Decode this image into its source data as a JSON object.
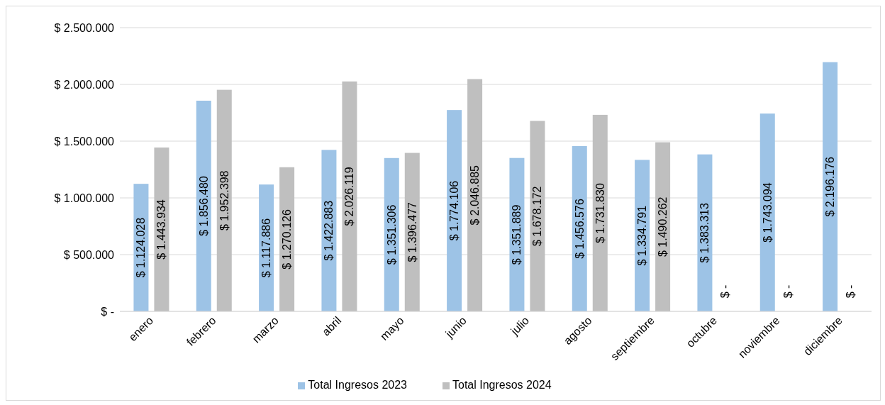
{
  "chart_data": {
    "type": "bar",
    "categories": [
      "enero",
      "febrero",
      "marzo",
      "abril",
      "mayo",
      "junio",
      "julio",
      "agosto",
      "septiembre",
      "octubre",
      "noviembre",
      "diciembre"
    ],
    "series": [
      {
        "name": "Total Ingresos 2023",
        "color": "#9dc3e6",
        "values": [
          1124028,
          1856480,
          1117886,
          1422883,
          1351306,
          1774106,
          1351889,
          1456576,
          1334791,
          1383313,
          1743094,
          2196176
        ],
        "value_labels": [
          "$ 1.124.028",
          "$ 1.856.480",
          "$ 1.117.886",
          "$ 1.422.883",
          "$ 1.351.306",
          "$ 1.774.106",
          "$ 1.351.889",
          "$ 1.456.576",
          "$ 1.334.791",
          "$ 1.383.313",
          "$ 1.743.094",
          "$ 2.196.176"
        ]
      },
      {
        "name": "Total Ingresos 2024",
        "color": "#bfbfbf",
        "values": [
          1443934,
          1952398,
          1270126,
          2026119,
          1396477,
          2046885,
          1678172,
          1731830,
          1490262,
          0,
          0,
          0
        ],
        "value_labels": [
          "$ 1.443.934",
          "$ 1.952.398",
          "$ 1.270.126",
          "$ 2.026.119",
          "$ 1.396.477",
          "$ 2.046.885",
          "$ 1.678.172",
          "$ 1.731.830",
          "$ 1.490.262",
          "$ -",
          "$ -",
          "$ -"
        ]
      }
    ],
    "ylim": [
      0,
      2500000
    ],
    "yticks": [
      {
        "value": 0,
        "label": "$ -"
      },
      {
        "value": 500000,
        "label": "$ 500.000"
      },
      {
        "value": 1000000,
        "label": "$ 1.000.000"
      },
      {
        "value": 1500000,
        "label": "$ 1.500.000"
      },
      {
        "value": 2000000,
        "label": "$ 2.000.000"
      },
      {
        "value": 2500000,
        "label": "$ 2.500.000"
      }
    ],
    "grid": "y",
    "legend": "bottom"
  }
}
